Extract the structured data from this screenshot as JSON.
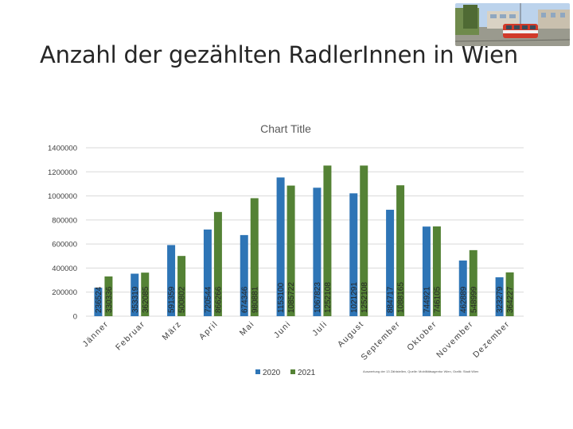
{
  "slide": {
    "title": "Anzahl der gezählten RadlerInnen in Wien",
    "footnote": "Auswertung der 13 Zählstellen, Quelle: Mobilitätsagentur Wien, Grafik: Stadt Wien"
  },
  "photo": {
    "icon": "tram-photo-icon"
  },
  "chart_data": {
    "type": "bar",
    "title": "Chart Title",
    "categories": [
      "Jänner",
      "Februar",
      "März",
      "April",
      "Mai",
      "Juni",
      "Juli",
      "August",
      "September",
      "Oktober",
      "November",
      "Dezember"
    ],
    "series": [
      {
        "name": "2020",
        "color": "#2e75b6",
        "values": [
          236524,
          353319,
          591359,
          720544,
          674346,
          1153100,
          1067823,
          1021291,
          884717,
          744921,
          462889,
          323279
        ]
      },
      {
        "name": "2021",
        "color": "#548235",
        "values": [
          330336,
          362085,
          500802,
          866266,
          980881,
          1085722,
          1252108,
          1252108,
          1088165,
          746105,
          548999,
          364227
        ]
      }
    ],
    "yticks": [
      "0",
      "200000",
      "400000",
      "600000",
      "800000",
      "1000000",
      "1200000",
      "1400000"
    ],
    "ylim": [
      0,
      1400000
    ],
    "grid": true,
    "legend": "bottom"
  }
}
